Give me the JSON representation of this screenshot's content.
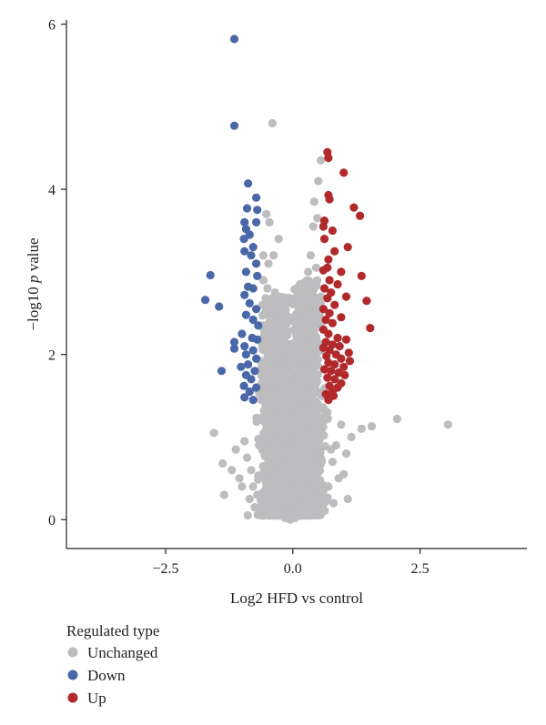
{
  "chart_data": {
    "type": "scatter",
    "title": "",
    "xlabel": "Log2 HFD vs control",
    "ylabel_prefix": "−log10 ",
    "ylabel_italic": "p",
    "ylabel_suffix": " value",
    "xlim": [
      -4.45,
      4.6
    ],
    "ylim": [
      -0.35,
      6.05
    ],
    "xticks": [
      -2.5,
      0.0,
      2.5
    ],
    "xtick_labels": [
      "−2.5",
      "0.0",
      "2.5"
    ],
    "yticks": [
      0,
      2,
      4,
      6
    ],
    "ytick_labels": [
      "0",
      "2",
      "4",
      "6"
    ],
    "grid": false,
    "legend_position": "bottom-left",
    "legend_title": "Regulated type",
    "colors": {
      "Unchanged": "#bdbcbe",
      "Down": "#4a67a8",
      "Up": "#b2292c"
    },
    "series": [
      {
        "name": "Unchanged",
        "points": [
          [
            -0.4,
            4.8
          ],
          [
            -0.52,
            3.7
          ],
          [
            -0.46,
            3.6
          ],
          [
            -0.28,
            3.4
          ],
          [
            -0.58,
            3.2
          ],
          [
            -0.48,
            3.1
          ],
          [
            -0.38,
            3.2
          ],
          [
            -0.58,
            2.9
          ],
          [
            -0.5,
            2.8
          ],
          [
            -0.35,
            2.75
          ],
          [
            -0.6,
            2.6
          ],
          [
            -0.55,
            2.5
          ],
          [
            -0.44,
            2.6
          ],
          [
            -0.62,
            2.35
          ],
          [
            -0.52,
            2.2
          ],
          [
            -0.42,
            2.4
          ],
          [
            -0.6,
            2.1
          ],
          [
            -0.48,
            2.0
          ],
          [
            0.55,
            4.35
          ],
          [
            0.5,
            4.1
          ],
          [
            0.42,
            3.85
          ],
          [
            0.48,
            3.65
          ],
          [
            0.4,
            3.55
          ],
          [
            0.35,
            3.2
          ],
          [
            0.46,
            3.05
          ],
          [
            0.3,
            3.0
          ],
          [
            0.42,
            2.85
          ],
          [
            0.55,
            2.7
          ],
          [
            0.5,
            2.55
          ],
          [
            0.38,
            2.45
          ],
          [
            0.55,
            2.35
          ],
          [
            0.46,
            2.2
          ],
          [
            0.3,
            2.25
          ],
          [
            0.55,
            2.05
          ],
          [
            0.44,
            1.95
          ],
          [
            0.36,
            1.85
          ],
          [
            2.05,
            1.22
          ],
          [
            3.05,
            1.15
          ],
          [
            1.55,
            1.13
          ],
          [
            1.35,
            1.1
          ],
          [
            1.15,
            1.0
          ],
          [
            0.95,
            1.15
          ],
          [
            1.05,
            0.8
          ],
          [
            0.85,
            0.9
          ],
          [
            0.75,
            0.85
          ],
          [
            1.0,
            0.55
          ],
          [
            0.9,
            0.5
          ],
          [
            0.78,
            0.7
          ],
          [
            1.08,
            0.25
          ],
          [
            0.7,
            0.4
          ],
          [
            0.6,
            0.35
          ],
          [
            0.8,
            0.2
          ],
          [
            -1.55,
            1.05
          ],
          [
            -1.38,
            0.68
          ],
          [
            -1.35,
            0.3
          ],
          [
            -1.2,
            0.6
          ],
          [
            -1.05,
            0.5
          ],
          [
            -1.0,
            0.4
          ],
          [
            -1.12,
            0.85
          ],
          [
            -0.95,
            0.95
          ],
          [
            -0.9,
            0.75
          ],
          [
            -0.82,
            0.6
          ],
          [
            -0.78,
            0.4
          ],
          [
            -0.7,
            0.3
          ],
          [
            -0.6,
            0.2
          ],
          [
            -0.62,
            0.12
          ],
          [
            -0.85,
            0.25
          ],
          [
            -0.75,
            0.15
          ],
          [
            -0.5,
            0.15
          ],
          [
            -0.42,
            0.25
          ],
          [
            -0.35,
            0.1
          ],
          [
            -0.25,
            0.05
          ],
          [
            -0.15,
            0.02
          ],
          [
            -0.05,
            0.0
          ],
          [
            0.05,
            0.02
          ],
          [
            0.15,
            0.05
          ],
          [
            0.25,
            0.1
          ],
          [
            0.35,
            0.15
          ],
          [
            0.45,
            0.2
          ],
          [
            0.55,
            0.25
          ],
          [
            -0.68,
            1.6
          ],
          [
            -0.62,
            1.45
          ],
          [
            -0.58,
            1.25
          ],
          [
            -0.52,
            1.1
          ],
          [
            -0.7,
            1.2
          ],
          [
            0.58,
            1.55
          ],
          [
            0.5,
            1.35
          ],
          [
            0.62,
            1.2
          ],
          [
            0.55,
            1.05
          ],
          [
            0.68,
            1.3
          ]
        ]
      },
      {
        "name": "Down",
        "points": [
          [
            -1.15,
            5.82
          ],
          [
            -1.15,
            4.77
          ],
          [
            -0.88,
            4.07
          ],
          [
            -0.72,
            3.9
          ],
          [
            -0.9,
            3.77
          ],
          [
            -0.7,
            3.75
          ],
          [
            -0.95,
            3.6
          ],
          [
            -0.72,
            3.6
          ],
          [
            -0.92,
            3.52
          ],
          [
            -0.85,
            3.45
          ],
          [
            -0.96,
            3.4
          ],
          [
            -0.78,
            3.3
          ],
          [
            -0.95,
            3.25
          ],
          [
            -0.82,
            3.2
          ],
          [
            -0.72,
            3.1
          ],
          [
            -0.92,
            3.0
          ],
          [
            -1.62,
            2.96
          ],
          [
            -0.7,
            2.95
          ],
          [
            -0.88,
            2.82
          ],
          [
            -0.78,
            2.8
          ],
          [
            -0.95,
            2.72
          ],
          [
            -1.72,
            2.66
          ],
          [
            -0.85,
            2.62
          ],
          [
            -1.45,
            2.58
          ],
          [
            -0.72,
            2.55
          ],
          [
            -0.92,
            2.48
          ],
          [
            -0.78,
            2.42
          ],
          [
            -0.68,
            2.35
          ],
          [
            -1.0,
            2.25
          ],
          [
            -0.8,
            2.2
          ],
          [
            -0.7,
            2.18
          ],
          [
            -1.15,
            2.15
          ],
          [
            -0.95,
            2.1
          ],
          [
            -1.15,
            2.07
          ],
          [
            -0.78,
            2.05
          ],
          [
            -0.92,
            2.0
          ],
          [
            -0.72,
            1.95
          ],
          [
            -0.88,
            1.88
          ],
          [
            -1.02,
            1.85
          ],
          [
            -1.4,
            1.8
          ],
          [
            -0.75,
            1.8
          ],
          [
            -0.92,
            1.75
          ],
          [
            -0.82,
            1.7
          ],
          [
            -0.96,
            1.62
          ],
          [
            -0.72,
            1.6
          ],
          [
            -0.85,
            1.55
          ],
          [
            -0.95,
            1.48
          ],
          [
            -0.78,
            1.45
          ]
        ]
      },
      {
        "name": "Up",
        "points": [
          [
            0.68,
            4.45
          ],
          [
            0.7,
            4.38
          ],
          [
            1.0,
            4.2
          ],
          [
            0.7,
            3.93
          ],
          [
            0.72,
            3.88
          ],
          [
            1.2,
            3.78
          ],
          [
            1.32,
            3.68
          ],
          [
            0.62,
            3.62
          ],
          [
            0.6,
            3.55
          ],
          [
            0.78,
            3.5
          ],
          [
            0.62,
            3.4
          ],
          [
            1.08,
            3.3
          ],
          [
            0.82,
            3.25
          ],
          [
            0.7,
            3.15
          ],
          [
            0.68,
            3.05
          ],
          [
            0.6,
            3.02
          ],
          [
            0.95,
            3.0
          ],
          [
            1.35,
            2.95
          ],
          [
            0.72,
            2.9
          ],
          [
            0.88,
            2.85
          ],
          [
            0.62,
            2.8
          ],
          [
            0.75,
            2.75
          ],
          [
            1.05,
            2.7
          ],
          [
            0.68,
            2.68
          ],
          [
            1.45,
            2.65
          ],
          [
            0.82,
            2.6
          ],
          [
            0.6,
            2.55
          ],
          [
            0.72,
            2.5
          ],
          [
            0.95,
            2.45
          ],
          [
            0.65,
            2.42
          ],
          [
            0.78,
            2.38
          ],
          [
            1.52,
            2.32
          ],
          [
            0.6,
            2.3
          ],
          [
            0.7,
            2.25
          ],
          [
            0.88,
            2.2
          ],
          [
            1.05,
            2.18
          ],
          [
            0.65,
            2.15
          ],
          [
            0.78,
            2.12
          ],
          [
            0.92,
            2.1
          ],
          [
            0.6,
            2.08
          ],
          [
            0.72,
            2.05
          ],
          [
            1.1,
            2.02
          ],
          [
            0.85,
            2.0
          ],
          [
            0.66,
            1.98
          ],
          [
            0.95,
            1.95
          ],
          [
            1.12,
            1.92
          ],
          [
            0.7,
            1.9
          ],
          [
            0.82,
            1.88
          ],
          [
            1.0,
            1.85
          ],
          [
            0.62,
            1.82
          ],
          [
            0.75,
            1.8
          ],
          [
            0.9,
            1.78
          ],
          [
            1.02,
            1.75
          ],
          [
            0.68,
            1.72
          ],
          [
            0.82,
            1.7
          ],
          [
            0.95,
            1.65
          ],
          [
            0.72,
            1.62
          ],
          [
            0.88,
            1.6
          ],
          [
            0.78,
            1.55
          ],
          [
            0.65,
            1.52
          ],
          [
            0.8,
            1.5
          ],
          [
            0.7,
            1.45
          ]
        ]
      }
    ],
    "dense_clusters": [
      {
        "name": "Unchanged",
        "center_x": -0.3,
        "spread_x": 0.17,
        "y_range": [
          0.05,
          2.7
        ],
        "count": 1400
      },
      {
        "name": "Unchanged",
        "center_x": 0.26,
        "spread_x": 0.16,
        "y_range": [
          0.05,
          2.9
        ],
        "count": 1400
      }
    ]
  }
}
